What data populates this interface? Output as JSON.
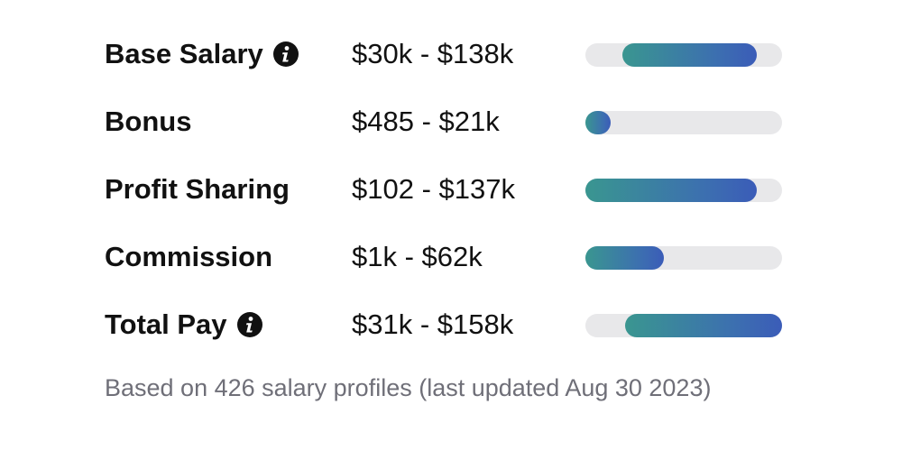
{
  "rows": [
    {
      "label": "Base Salary",
      "has_info": true,
      "range": "$30k - $138k",
      "bar": {
        "start_pct": 19,
        "end_pct": 87
      }
    },
    {
      "label": "Bonus",
      "has_info": false,
      "range": "$485 - $21k",
      "bar": {
        "start_pct": 0,
        "end_pct": 13
      }
    },
    {
      "label": "Profit Sharing",
      "has_info": false,
      "range": "$102 - $137k",
      "bar": {
        "start_pct": 0,
        "end_pct": 87
      }
    },
    {
      "label": "Commission",
      "has_info": false,
      "range": "$1k - $62k",
      "bar": {
        "start_pct": 0,
        "end_pct": 40
      }
    },
    {
      "label": "Total Pay",
      "has_info": true,
      "range": "$31k - $158k",
      "bar": {
        "start_pct": 20,
        "end_pct": 100
      }
    }
  ],
  "footnote": "Based on 426 salary profiles (last updated Aug 30 2023)",
  "icons": {
    "info": "info-icon"
  },
  "colors": {
    "bar_gradient_start": "#3a9690",
    "bar_gradient_end": "#3b5cb8",
    "track": "#e8e8ea",
    "text": "#111111",
    "footnote": "#6f6f78"
  }
}
